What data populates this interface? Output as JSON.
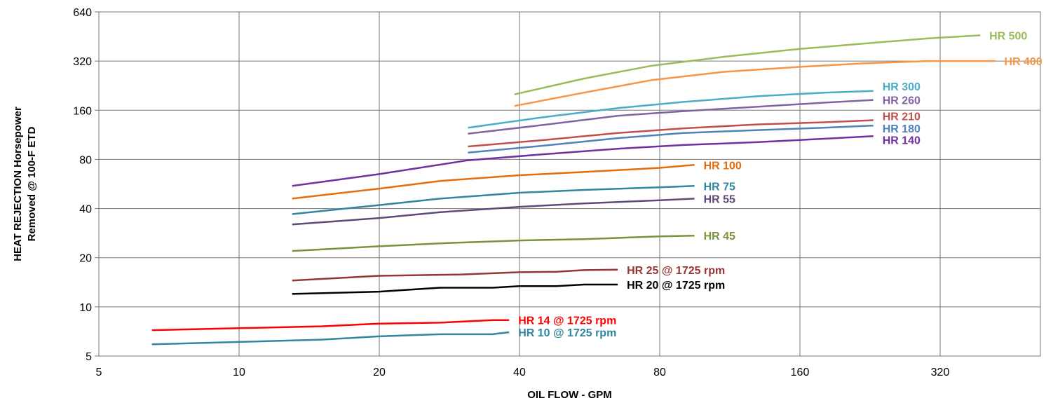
{
  "chart_data": {
    "type": "line",
    "title": "",
    "xlabel": "OIL FLOW - GPM",
    "ylabel_lines": [
      "HEAT REJECTION Horsepower",
      "Removed @ 100-F ETD"
    ],
    "x_scale": "log",
    "y_scale": "log",
    "xlim": [
      5,
      500
    ],
    "ylim": [
      5,
      640
    ],
    "x_ticks": [
      5,
      10,
      20,
      40,
      80,
      160,
      320
    ],
    "y_ticks": [
      5,
      10,
      20,
      40,
      80,
      160,
      320,
      640
    ],
    "grid": true,
    "legend": "inline labels at right end of each curve",
    "series": [
      {
        "name": "HR 500",
        "color": "#9BBB59",
        "x": [
          39,
          55,
          77,
          110,
          160,
          220,
          300,
          390
        ],
        "y": [
          200,
          250,
          300,
          340,
          380,
          410,
          440,
          460
        ]
      },
      {
        "name": "HR 400",
        "color": "#F79646",
        "x": [
          39,
          55,
          77,
          110,
          160,
          220,
          300,
          420
        ],
        "y": [
          170,
          205,
          245,
          275,
          295,
          310,
          320,
          320
        ]
      },
      {
        "name": "HR 300",
        "color": "#4BACC6",
        "x": [
          31,
          45,
          65,
          90,
          130,
          180,
          230
        ],
        "y": [
          125,
          145,
          165,
          180,
          195,
          205,
          210
        ]
      },
      {
        "name": "HR 260",
        "color": "#8064A2",
        "x": [
          31,
          45,
          65,
          90,
          130,
          180,
          230
        ],
        "y": [
          115,
          130,
          148,
          158,
          168,
          178,
          185
        ]
      },
      {
        "name": "HR 210",
        "color": "#C0504D",
        "x": [
          31,
          45,
          65,
          90,
          130,
          180,
          230
        ],
        "y": [
          96,
          105,
          116,
          124,
          131,
          135,
          139
        ]
      },
      {
        "name": "HR 180",
        "color": "#4F81BD",
        "x": [
          31,
          45,
          65,
          90,
          130,
          180,
          230
        ],
        "y": [
          88,
          97,
          108,
          116,
          121,
          125,
          129
        ]
      },
      {
        "name": "HR 140",
        "color": "#7030A0",
        "x": [
          13,
          20,
          31,
          45,
          65,
          90,
          130,
          180,
          230
        ],
        "y": [
          55,
          65,
          79,
          86,
          93,
          98,
          102,
          107,
          111
        ]
      },
      {
        "name": "HR 100",
        "color": "#E46C0A",
        "x": [
          13,
          20,
          27,
          40,
          55,
          80,
          95
        ],
        "y": [
          46,
          53,
          59,
          64,
          67,
          71,
          74
        ]
      },
      {
        "name": "HR 75",
        "color": "#31859C",
        "x": [
          13,
          20,
          27,
          40,
          55,
          80,
          95
        ],
        "y": [
          37,
          42,
          46,
          50,
          52,
          54,
          55
        ]
      },
      {
        "name": "HR 55",
        "color": "#60497A",
        "x": [
          13,
          20,
          27,
          40,
          55,
          80,
          95
        ],
        "y": [
          32,
          35,
          38,
          41,
          43,
          45,
          46
        ]
      },
      {
        "name": "HR 45",
        "color": "#77933C",
        "x": [
          13,
          20,
          27,
          40,
          55,
          80,
          95
        ],
        "y": [
          22,
          23.5,
          24.5,
          25.5,
          26,
          27,
          27.3
        ]
      },
      {
        "name": "HR 25 @ 1725 rpm",
        "color": "#953735",
        "x": [
          13,
          20,
          30,
          40,
          48,
          55,
          65
        ],
        "y": [
          14.5,
          15.5,
          15.8,
          16.3,
          16.4,
          16.8,
          16.9
        ]
      },
      {
        "name": "HR 20 @ 1725 rpm",
        "color": "#000000",
        "x": [
          13,
          20,
          27,
          35,
          40,
          48,
          55,
          65
        ],
        "y": [
          12,
          12.4,
          13.1,
          13.1,
          13.4,
          13.4,
          13.7,
          13.7
        ]
      },
      {
        "name": "HR 14 @ 1725 rpm",
        "color": "#FF0000",
        "x": [
          6.5,
          10,
          15,
          20,
          27,
          35,
          38
        ],
        "y": [
          7.2,
          7.4,
          7.6,
          7.9,
          8.0,
          8.3,
          8.3
        ]
      },
      {
        "name": "HR 10 @ 1725 rpm",
        "color": "#31859C",
        "x": [
          6.5,
          10,
          15,
          20,
          27,
          35,
          38
        ],
        "y": [
          5.9,
          6.1,
          6.3,
          6.6,
          6.8,
          6.8,
          7.0
        ]
      }
    ]
  }
}
